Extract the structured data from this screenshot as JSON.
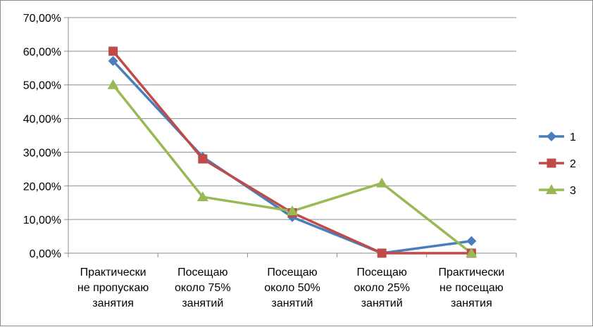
{
  "chart_data": {
    "type": "line",
    "categories": [
      [
        "Практически",
        "не пропускаю",
        "занятия"
      ],
      [
        "Посещаю",
        "около 75%",
        "занятий"
      ],
      [
        "Посещаю",
        "около  50%",
        "занятий"
      ],
      [
        "Посещаю",
        "около 25%",
        "занятий"
      ],
      [
        "Практически",
        "не посещаю",
        "занятия"
      ]
    ],
    "y_ticks": [
      "0,00%",
      "10,00%",
      "20,00%",
      "30,00%",
      "40,00%",
      "50,00%",
      "60,00%",
      "70,00%"
    ],
    "ylim": [
      0,
      70
    ],
    "grid": true,
    "legend_position": "right",
    "series": [
      {
        "name": "1",
        "color": "#4a7ebb",
        "marker": "diamond",
        "values": [
          57.1,
          28.6,
          10.7,
          0,
          3.6
        ]
      },
      {
        "name": "2",
        "color": "#be4b48",
        "marker": "square",
        "values": [
          60.0,
          28.0,
          12.0,
          0,
          0
        ]
      },
      {
        "name": "3",
        "color": "#98b954",
        "marker": "triangle",
        "values": [
          50.0,
          16.7,
          12.5,
          20.8,
          0
        ]
      }
    ]
  }
}
